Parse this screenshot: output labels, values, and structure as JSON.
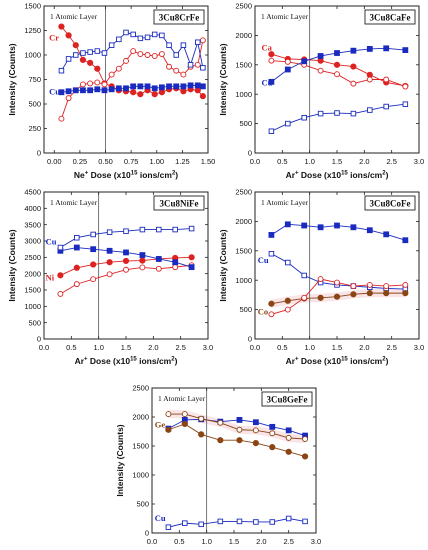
{
  "chart_data": [
    {
      "type": "line",
      "title": "3Cu8CrFe",
      "annotation": "1 Atomic Layer",
      "xlabel_main": "Ne",
      "xlabel_sup": "+",
      "xlabel_rest": " Dose (x10",
      "xlabel_exp": "15",
      "xlabel_end": " ions/cm",
      "xlabel_sq": "2",
      "xlabel_close": ")",
      "ylabel": "Intensity (Counts)",
      "xlim": [
        -0.1,
        1.5
      ],
      "ylim": [
        0,
        1500
      ],
      "xticks": [
        "0.00",
        "0.25",
        "0.50",
        "0.75",
        "1.00",
        "1.25",
        "1.50"
      ],
      "xtick_values": [
        0,
        0.25,
        0.5,
        0.75,
        1.0,
        1.25,
        1.5
      ],
      "yticks": [
        "0",
        "250",
        "500",
        "750",
        "1000",
        "1250",
        "1500"
      ],
      "ytick_values": [
        0,
        250,
        500,
        750,
        1000,
        1250,
        1500
      ],
      "vline": 0.5,
      "series_labels": [
        {
          "text": "Cr",
          "color": "#dd2222",
          "x": -0.05,
          "y": 1180
        },
        {
          "text": "Cu",
          "color": "#1a2bbf",
          "x": -0.05,
          "y": 630
        }
      ],
      "series": [
        {
          "color": "#dd2222",
          "marker": "filled-circle",
          "x": [
            0.07,
            0.14,
            0.21,
            0.28,
            0.35,
            0.42,
            0.49,
            0.56,
            0.63,
            0.7,
            0.77,
            0.84,
            0.91,
            0.98,
            1.05,
            1.12,
            1.19,
            1.26,
            1.33,
            1.4,
            1.45
          ],
          "values": [
            1290,
            1200,
            1100,
            950,
            920,
            860,
            710,
            680,
            640,
            630,
            620,
            600,
            640,
            600,
            620,
            650,
            660,
            630,
            650,
            640,
            580
          ]
        },
        {
          "color": "#dd2222",
          "marker": "open-circle",
          "x": [
            0.07,
            0.14,
            0.21,
            0.28,
            0.35,
            0.42,
            0.49,
            0.56,
            0.63,
            0.7,
            0.77,
            0.84,
            0.91,
            0.98,
            1.05,
            1.12,
            1.19,
            1.26,
            1.33,
            1.4,
            1.45
          ],
          "values": [
            350,
            560,
            640,
            700,
            710,
            720,
            700,
            800,
            860,
            940,
            1040,
            1010,
            1000,
            990,
            1010,
            880,
            840,
            800,
            880,
            900,
            1150
          ]
        },
        {
          "color": "#1a2bbf",
          "marker": "filled-square",
          "x": [
            0.07,
            0.14,
            0.21,
            0.28,
            0.35,
            0.42,
            0.49,
            0.56,
            0.63,
            0.7,
            0.77,
            0.84,
            0.91,
            0.98,
            1.05,
            1.12,
            1.19,
            1.26,
            1.33,
            1.4,
            1.45
          ],
          "values": [
            620,
            630,
            640,
            640,
            640,
            650,
            640,
            650,
            660,
            660,
            680,
            680,
            680,
            660,
            670,
            680,
            680,
            680,
            690,
            690,
            680
          ]
        },
        {
          "color": "#1a2bbf",
          "marker": "open-square",
          "x": [
            0.07,
            0.14,
            0.21,
            0.28,
            0.35,
            0.42,
            0.49,
            0.56,
            0.63,
            0.7,
            0.77,
            0.84,
            0.91,
            0.98,
            1.05,
            1.12,
            1.19,
            1.26,
            1.33,
            1.4,
            1.45
          ],
          "values": [
            840,
            960,
            1000,
            1020,
            1030,
            1040,
            1020,
            1100,
            1160,
            1230,
            1210,
            1170,
            1180,
            1210,
            1200,
            1100,
            1000,
            1100,
            900,
            1130,
            870
          ]
        }
      ]
    },
    {
      "type": "line",
      "title": "3Cu8CaFe",
      "annotation": "1 Atomic Layer",
      "xlabel_main": "Ar",
      "xlabel_sup": "+",
      "xlabel_rest": " Dose (x10",
      "xlabel_exp": "15",
      "xlabel_end": " ions/cm",
      "xlabel_sq": "2",
      "xlabel_close": ")",
      "ylabel": "Intensity (Counts)",
      "xlim": [
        0,
        3.0
      ],
      "ylim": [
        0,
        2500
      ],
      "xticks": [
        "0.0",
        "0.5",
        "1.0",
        "1.5",
        "2.0",
        "2.5",
        "3.0"
      ],
      "xtick_values": [
        0,
        0.5,
        1.0,
        1.5,
        2.0,
        2.5,
        3.0
      ],
      "yticks": [
        "0",
        "500",
        "1000",
        "1500",
        "2000",
        "2500"
      ],
      "ytick_values": [
        0,
        500,
        1000,
        1500,
        2000,
        2500
      ],
      "vline": 1.0,
      "series_labels": [
        {
          "text": "Ca",
          "color": "#dd2222",
          "x": 0.12,
          "y": 1790
        },
        {
          "text": "Cu",
          "color": "#1a2bbf",
          "x": 0.12,
          "y": 1200
        }
      ],
      "series": [
        {
          "color": "#dd2222",
          "marker": "filled-circle",
          "x": [
            0.3,
            0.6,
            0.9,
            1.2,
            1.5,
            1.8,
            2.1,
            2.4,
            2.75
          ],
          "values": [
            1680,
            1600,
            1590,
            1570,
            1500,
            1470,
            1330,
            1200,
            1140
          ]
        },
        {
          "color": "#dd2222",
          "marker": "open-circle",
          "x": [
            0.3,
            0.6,
            0.9,
            1.2,
            1.5,
            1.8,
            2.1,
            2.4,
            2.75
          ],
          "values": [
            1570,
            1550,
            1500,
            1400,
            1340,
            1180,
            1250,
            1250,
            1130
          ]
        },
        {
          "color": "#1a2bbf",
          "marker": "filled-square",
          "x": [
            0.3,
            0.6,
            0.9,
            1.2,
            1.5,
            1.8,
            2.1,
            2.4,
            2.75
          ],
          "values": [
            1210,
            1420,
            1560,
            1650,
            1700,
            1740,
            1770,
            1780,
            1750
          ]
        },
        {
          "color": "#1a2bbf",
          "marker": "open-square",
          "x": [
            0.3,
            0.6,
            0.9,
            1.2,
            1.5,
            1.8,
            2.1,
            2.4,
            2.75
          ],
          "values": [
            370,
            500,
            600,
            670,
            680,
            670,
            730,
            790,
            830
          ]
        }
      ]
    },
    {
      "type": "line",
      "title": "3Cu8NiFe",
      "annotation": "1 Atomic Layer",
      "xlabel_main": "Ar",
      "xlabel_sup": "+",
      "xlabel_rest": " Dose (x10",
      "xlabel_exp": "15",
      "xlabel_end": " ions/cm",
      "xlabel_sq": "2",
      "xlabel_close": ")",
      "ylabel": "Intensity (Counts)",
      "xlim": [
        0,
        3.0
      ],
      "ylim": [
        0,
        4500
      ],
      "xticks": [
        "0.0",
        "0.5",
        "1.0",
        "1.5",
        "2.0",
        "2.5",
        "3.0"
      ],
      "xtick_values": [
        0,
        0.5,
        1.0,
        1.5,
        2.0,
        2.5,
        3.0
      ],
      "yticks": [
        "0",
        "500",
        "1000",
        "1500",
        "2000",
        "2500",
        "3000",
        "3500",
        "4000",
        "4500"
      ],
      "ytick_values": [
        0,
        500,
        1000,
        1500,
        2000,
        2500,
        3000,
        3500,
        4000,
        4500
      ],
      "vline": 1.0,
      "series_labels": [
        {
          "text": "Cu",
          "color": "#1a2bbf",
          "x": 0.03,
          "y": 2980
        },
        {
          "text": "Ni",
          "color": "#dd2222",
          "x": 0.03,
          "y": 1880
        }
      ],
      "series": [
        {
          "color": "#dd2222",
          "marker": "filled-circle",
          "x": [
            0.3,
            0.6,
            0.9,
            1.2,
            1.5,
            1.8,
            2.1,
            2.4,
            2.7
          ],
          "values": [
            1950,
            2180,
            2280,
            2350,
            2390,
            2400,
            2450,
            2480,
            2500
          ]
        },
        {
          "color": "#dd2222",
          "marker": "open-circle",
          "x": [
            0.3,
            0.6,
            0.9,
            1.2,
            1.5,
            1.8,
            2.1,
            2.4,
            2.7
          ],
          "values": [
            1380,
            1680,
            1830,
            1980,
            2120,
            2190,
            2150,
            2200,
            2260
          ]
        },
        {
          "color": "#1a2bbf",
          "marker": "filled-square",
          "x": [
            0.3,
            0.6,
            0.9,
            1.2,
            1.5,
            1.8,
            2.1,
            2.4,
            2.7
          ],
          "values": [
            2700,
            2800,
            2750,
            2700,
            2650,
            2570,
            2450,
            2350,
            2200
          ]
        },
        {
          "color": "#1a2bbf",
          "marker": "open-square",
          "x": [
            0.3,
            0.6,
            0.9,
            1.2,
            1.5,
            1.8,
            2.1,
            2.4,
            2.7
          ],
          "values": [
            2800,
            3100,
            3200,
            3270,
            3300,
            3350,
            3350,
            3350,
            3380
          ]
        }
      ]
    },
    {
      "type": "line",
      "title": "3Cu8CoFe",
      "annotation": "1 Atomic Layer",
      "xlabel_main": "Ar",
      "xlabel_sup": "+",
      "xlabel_rest": " Dose (x10",
      "xlabel_exp": "15",
      "xlabel_end": " ions/cm",
      "xlabel_sq": "2",
      "xlabel_close": ")",
      "ylabel": "Intensity (Counts)",
      "xlim": [
        0,
        3.0
      ],
      "ylim": [
        0,
        2500
      ],
      "xticks": [
        "0.0",
        "0.5",
        "1.0",
        "1.5",
        "2.0",
        "2.5",
        "3.0"
      ],
      "xtick_values": [
        0,
        0.5,
        1.0,
        1.5,
        2.0,
        2.5,
        3.0
      ],
      "yticks": [
        "0",
        "500",
        "1000",
        "1500",
        "2000",
        "2500"
      ],
      "ytick_values": [
        0,
        500,
        1000,
        1500,
        2000,
        2500
      ],
      "vline": 1.0,
      "series_labels": [
        {
          "text": "Cu",
          "color": "#1a2bbf",
          "x": 0.05,
          "y": 1340
        },
        {
          "text": "Co",
          "color": "#8b4513",
          "x": 0.05,
          "y": 470
        }
      ],
      "series": [
        {
          "color": "#1a2bbf",
          "marker": "filled-square",
          "x": [
            0.3,
            0.6,
            0.9,
            1.2,
            1.5,
            1.8,
            2.1,
            2.4,
            2.75
          ],
          "values": [
            1770,
            1950,
            1930,
            1900,
            1930,
            1900,
            1850,
            1780,
            1680
          ]
        },
        {
          "color": "#1a2bbf",
          "marker": "open-square",
          "x": [
            0.3,
            0.6,
            0.9,
            1.2,
            1.5,
            1.8,
            2.1,
            2.4,
            2.75
          ],
          "values": [
            1450,
            1300,
            1080,
            960,
            920,
            900,
            880,
            860,
            850
          ]
        },
        {
          "color": "#8b4513",
          "marker": "filled-circle",
          "x": [
            0.3,
            0.6,
            0.9,
            1.2,
            1.5,
            1.8,
            2.1,
            2.4,
            2.75
          ],
          "values": [
            600,
            650,
            690,
            700,
            720,
            760,
            780,
            780,
            780
          ]
        },
        {
          "color": "#dd2222",
          "marker": "open-circle",
          "x": [
            0.3,
            0.6,
            0.9,
            1.2,
            1.5,
            1.8,
            2.1,
            2.4,
            2.75
          ],
          "values": [
            420,
            500,
            700,
            1020,
            960,
            900,
            920,
            900,
            920
          ]
        }
      ]
    },
    {
      "type": "line",
      "title": "3Cu8GeFe",
      "annotation": "1 Atomic Layer",
      "xlabel_main": "Ar",
      "xlabel_sup": "+",
      "xlabel_rest": " Dose (x10",
      "xlabel_exp": "15",
      "xlabel_end": " ions/cm",
      "xlabel_sq": "2",
      "xlabel_close": ")",
      "ylabel": "Intensity (Counts)",
      "xlim": [
        0,
        3.0
      ],
      "ylim": [
        0,
        2500
      ],
      "xticks": [
        "0.0",
        "0.5",
        "1.0",
        "1.5",
        "2.0",
        "2.5",
        "3.0"
      ],
      "xtick_values": [
        0,
        0.5,
        1.0,
        1.5,
        2.0,
        2.5,
        3.0
      ],
      "yticks": [
        "0",
        "500",
        "1000",
        "1500",
        "2000",
        "2500"
      ],
      "ytick_values": [
        0,
        500,
        1000,
        1500,
        2000,
        2500
      ],
      "vline": 1.0,
      "series_labels": [
        {
          "text": "Ge",
          "color": "#8b4513",
          "x": 0.05,
          "y": 1870
        },
        {
          "text": "Cu",
          "color": "#1a2bbf",
          "x": 0.05,
          "y": 260
        }
      ],
      "series": [
        {
          "color": "#1a2bbf",
          "marker": "filled-square",
          "x": [
            0.3,
            0.6,
            0.9,
            1.25,
            1.6,
            1.9,
            2.2,
            2.5,
            2.8
          ],
          "values": [
            1800,
            1950,
            1960,
            1920,
            1950,
            1910,
            1830,
            1770,
            1680
          ]
        },
        {
          "color": "#8b4513",
          "marker": "open-circle",
          "x": [
            0.3,
            0.6,
            0.9,
            1.25,
            1.6,
            1.9,
            2.2,
            2.5,
            2.8
          ],
          "values": [
            2050,
            2050,
            1970,
            1900,
            1780,
            1770,
            1720,
            1640,
            1620
          ]
        },
        {
          "color": "#8b4513",
          "marker": "filled-circle",
          "x": [
            0.3,
            0.6,
            0.9,
            1.25,
            1.6,
            1.9,
            2.2,
            2.5,
            2.8
          ],
          "values": [
            1780,
            1880,
            1700,
            1600,
            1600,
            1550,
            1480,
            1400,
            1320
          ]
        },
        {
          "color": "#1a2bbf",
          "marker": "open-square",
          "x": [
            0.3,
            0.6,
            0.9,
            1.25,
            1.6,
            1.9,
            2.2,
            2.5,
            2.8
          ],
          "values": [
            100,
            170,
            150,
            200,
            200,
            190,
            190,
            250,
            200
          ]
        }
      ]
    }
  ]
}
